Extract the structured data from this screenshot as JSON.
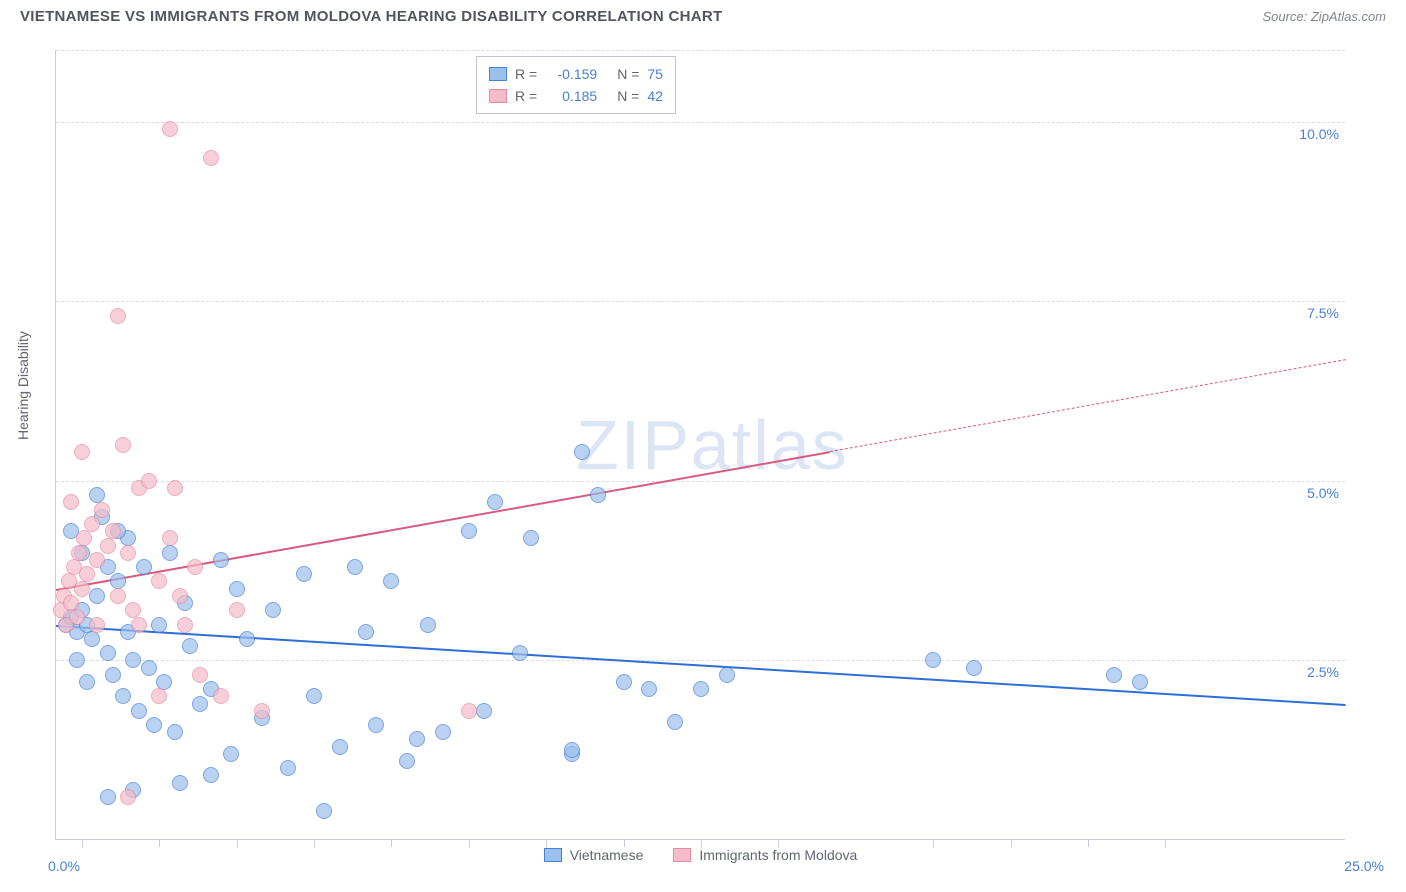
{
  "header": {
    "title": "VIETNAMESE VS IMMIGRANTS FROM MOLDOVA HEARING DISABILITY CORRELATION CHART",
    "source": "Source: ZipAtlas.com"
  },
  "chart": {
    "type": "scatter",
    "y_axis_label": "Hearing Disability",
    "background_color": "#ffffff",
    "grid_color": "#d8dce2",
    "axis_color": "#c8ccd4",
    "xlim": [
      0,
      25
    ],
    "ylim": [
      0,
      11
    ],
    "y_ticks": [
      {
        "v": 2.5,
        "label": "2.5%"
      },
      {
        "v": 5.0,
        "label": "5.0%"
      },
      {
        "v": 7.5,
        "label": "7.5%"
      },
      {
        "v": 10.0,
        "label": "10.0%"
      }
    ],
    "x_tick_labels": {
      "min": "0.0%",
      "max": "25.0%"
    },
    "x_tick_positions": [
      0.5,
      2,
      3.5,
      5,
      6.5,
      8,
      9.5,
      11,
      12.5,
      14,
      17,
      18.5,
      20,
      21.5
    ],
    "watermark": "ZIPatlas",
    "legend_top": {
      "rows": [
        {
          "swatch_fill": "#9cc0ec",
          "swatch_border": "#4a7fd8",
          "r_label": "R =",
          "r_value": "-0.159",
          "n_label": "N =",
          "n_value": "75"
        },
        {
          "swatch_fill": "#f5bcc9",
          "swatch_border": "#e88aa2",
          "r_label": "R =",
          "r_value": "0.185",
          "n_label": "N =",
          "n_value": "42"
        }
      ],
      "label_color": "#606570",
      "value_color": "#4a7fd8"
    },
    "legend_bottom": [
      {
        "swatch_fill": "#9cc0ec",
        "swatch_border": "#4a7fd8",
        "label": "Vietnamese"
      },
      {
        "swatch_fill": "#f5bcc9",
        "swatch_border": "#e88aa2",
        "label": "Immigrants from Moldova"
      }
    ],
    "series": [
      {
        "name": "vietnamese",
        "color_fill": "#9cc0ec",
        "color_border": "#4a7fd8",
        "trend": {
          "x1": 0,
          "y1": 3.0,
          "x2": 25,
          "y2": 1.9,
          "solid_until_x": 25,
          "color": "#2e6fd6"
        },
        "points": [
          [
            0.2,
            3.0
          ],
          [
            0.3,
            3.1
          ],
          [
            0.4,
            2.9
          ],
          [
            0.5,
            3.2
          ],
          [
            0.6,
            3.0
          ],
          [
            0.7,
            2.8
          ],
          [
            0.8,
            3.4
          ],
          [
            0.9,
            4.5
          ],
          [
            1.0,
            2.6
          ],
          [
            1.1,
            2.3
          ],
          [
            1.2,
            3.6
          ],
          [
            1.3,
            2.0
          ],
          [
            1.4,
            4.2
          ],
          [
            1.5,
            2.5
          ],
          [
            1.6,
            1.8
          ],
          [
            1.7,
            3.8
          ],
          [
            1.8,
            2.4
          ],
          [
            1.9,
            1.6
          ],
          [
            2.0,
            3.0
          ],
          [
            2.1,
            2.2
          ],
          [
            2.2,
            4.0
          ],
          [
            2.3,
            1.5
          ],
          [
            2.5,
            3.3
          ],
          [
            2.6,
            2.7
          ],
          [
            2.8,
            1.9
          ],
          [
            3.0,
            2.1
          ],
          [
            3.2,
            3.9
          ],
          [
            3.4,
            1.2
          ],
          [
            3.5,
            3.5
          ],
          [
            3.7,
            2.8
          ],
          [
            4.0,
            1.7
          ],
          [
            4.2,
            3.2
          ],
          [
            4.5,
            1.0
          ],
          [
            4.8,
            3.7
          ],
          [
            5.0,
            2.0
          ],
          [
            5.2,
            0.4
          ],
          [
            5.5,
            1.3
          ],
          [
            5.8,
            3.8
          ],
          [
            6.0,
            2.9
          ],
          [
            6.2,
            1.6
          ],
          [
            6.5,
            3.6
          ],
          [
            6.8,
            1.1
          ],
          [
            7.0,
            1.4
          ],
          [
            7.2,
            3.0
          ],
          [
            7.5,
            1.5
          ],
          [
            8.0,
            4.3
          ],
          [
            8.3,
            1.8
          ],
          [
            8.5,
            4.7
          ],
          [
            9.0,
            2.6
          ],
          [
            9.2,
            4.2
          ],
          [
            10.0,
            1.2
          ],
          [
            10.0,
            1.25
          ],
          [
            10.2,
            5.4
          ],
          [
            10.5,
            4.8
          ],
          [
            11.0,
            2.2
          ],
          [
            11.5,
            2.1
          ],
          [
            12.0,
            1.65
          ],
          [
            12.5,
            2.1
          ],
          [
            13.0,
            2.3
          ],
          [
            17.0,
            2.5
          ],
          [
            17.8,
            2.4
          ],
          [
            20.5,
            2.3
          ],
          [
            21.0,
            2.2
          ],
          [
            0.3,
            4.3
          ],
          [
            0.5,
            4.0
          ],
          [
            0.8,
            4.8
          ],
          [
            1.0,
            3.8
          ],
          [
            1.2,
            4.3
          ],
          [
            1.4,
            2.9
          ],
          [
            1.0,
            0.6
          ],
          [
            2.4,
            0.8
          ],
          [
            3.0,
            0.9
          ],
          [
            1.5,
            0.7
          ],
          [
            0.4,
            2.5
          ],
          [
            0.6,
            2.2
          ]
        ]
      },
      {
        "name": "moldova",
        "color_fill": "#f5bcc9",
        "color_border": "#e88aa2",
        "trend": {
          "x1": 0,
          "y1": 3.5,
          "x2": 25,
          "y2": 6.7,
          "solid_until_x": 15,
          "color": "#d85a80"
        },
        "points": [
          [
            0.1,
            3.2
          ],
          [
            0.15,
            3.4
          ],
          [
            0.2,
            3.0
          ],
          [
            0.25,
            3.6
          ],
          [
            0.3,
            3.3
          ],
          [
            0.35,
            3.8
          ],
          [
            0.4,
            3.1
          ],
          [
            0.45,
            4.0
          ],
          [
            0.5,
            3.5
          ],
          [
            0.55,
            4.2
          ],
          [
            0.6,
            3.7
          ],
          [
            0.7,
            4.4
          ],
          [
            0.8,
            3.9
          ],
          [
            0.9,
            4.6
          ],
          [
            1.0,
            4.1
          ],
          [
            1.1,
            4.3
          ],
          [
            1.2,
            3.4
          ],
          [
            1.3,
            5.5
          ],
          [
            1.4,
            4.0
          ],
          [
            1.5,
            3.2
          ],
          [
            1.6,
            4.9
          ],
          [
            1.8,
            5.0
          ],
          [
            2.0,
            3.6
          ],
          [
            2.2,
            4.2
          ],
          [
            2.3,
            4.9
          ],
          [
            2.5,
            3.0
          ],
          [
            2.7,
            3.8
          ],
          [
            1.2,
            7.3
          ],
          [
            2.2,
            9.9
          ],
          [
            3.0,
            9.5
          ],
          [
            3.2,
            2.0
          ],
          [
            3.5,
            3.2
          ],
          [
            2.8,
            2.3
          ],
          [
            4.0,
            1.8
          ],
          [
            8.0,
            1.8
          ],
          [
            1.4,
            0.6
          ],
          [
            2.0,
            2.0
          ],
          [
            0.3,
            4.7
          ],
          [
            0.5,
            5.4
          ],
          [
            0.8,
            3.0
          ],
          [
            1.6,
            3.0
          ],
          [
            2.4,
            3.4
          ]
        ]
      }
    ]
  }
}
